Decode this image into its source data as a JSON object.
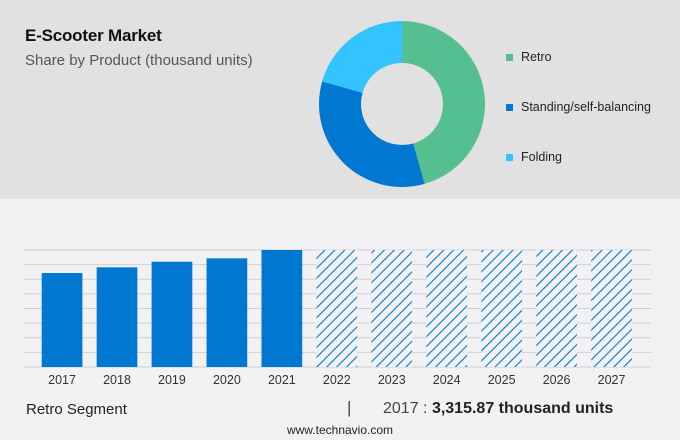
{
  "header": {
    "title": "E-Scooter Market",
    "subtitle": "Share by Product (thousand units)"
  },
  "legend": {
    "items": [
      {
        "label": "Retro",
        "color": "#55bf90"
      },
      {
        "label": "Standing/self-balancing",
        "color": "#0078d2"
      },
      {
        "label": "Folding",
        "color": "#33c3ff"
      }
    ]
  },
  "footer": {
    "segment_label": "Retro Segment",
    "separator": "|",
    "year": "2017 : ",
    "value": "3,315.87 thousand units",
    "source": "www.technavio.com"
  },
  "colors": {
    "historic_bar": "#0078d2",
    "forecast_hatch": "#0078d2",
    "top_panel_bg": "#e1e1e1",
    "bottom_bg": "#f2f2f4",
    "gridline": "#cfcfcf"
  },
  "chart_data": [
    {
      "type": "pie",
      "title": "E-Scooter Market",
      "subtitle": "Share by Product (thousand units)",
      "donut": true,
      "categories": [
        "Retro",
        "Standing/self-balancing",
        "Folding"
      ],
      "values": [
        45.6,
        33.8,
        20.6
      ],
      "colors": [
        "#55bf90",
        "#0078d2",
        "#33c3ff"
      ],
      "legend_position": "right"
    },
    {
      "type": "bar",
      "title": "Retro Segment",
      "categories": [
        "2017",
        "2018",
        "2019",
        "2020",
        "2021",
        "2022",
        "2023",
        "2024",
        "2025",
        "2026",
        "2027"
      ],
      "values": [
        3315.87,
        3517,
        3714,
        3834,
        4128,
        null,
        null,
        null,
        null,
        null,
        null
      ],
      "forecast_years": [
        "2022",
        "2023",
        "2024",
        "2025",
        "2026",
        "2027"
      ],
      "forecast_style": "hatched, full height placeholder",
      "xlabel": "",
      "ylabel": "thousand units",
      "grid": true,
      "annotation": "2017 : 3,315.87 thousand units"
    }
  ]
}
